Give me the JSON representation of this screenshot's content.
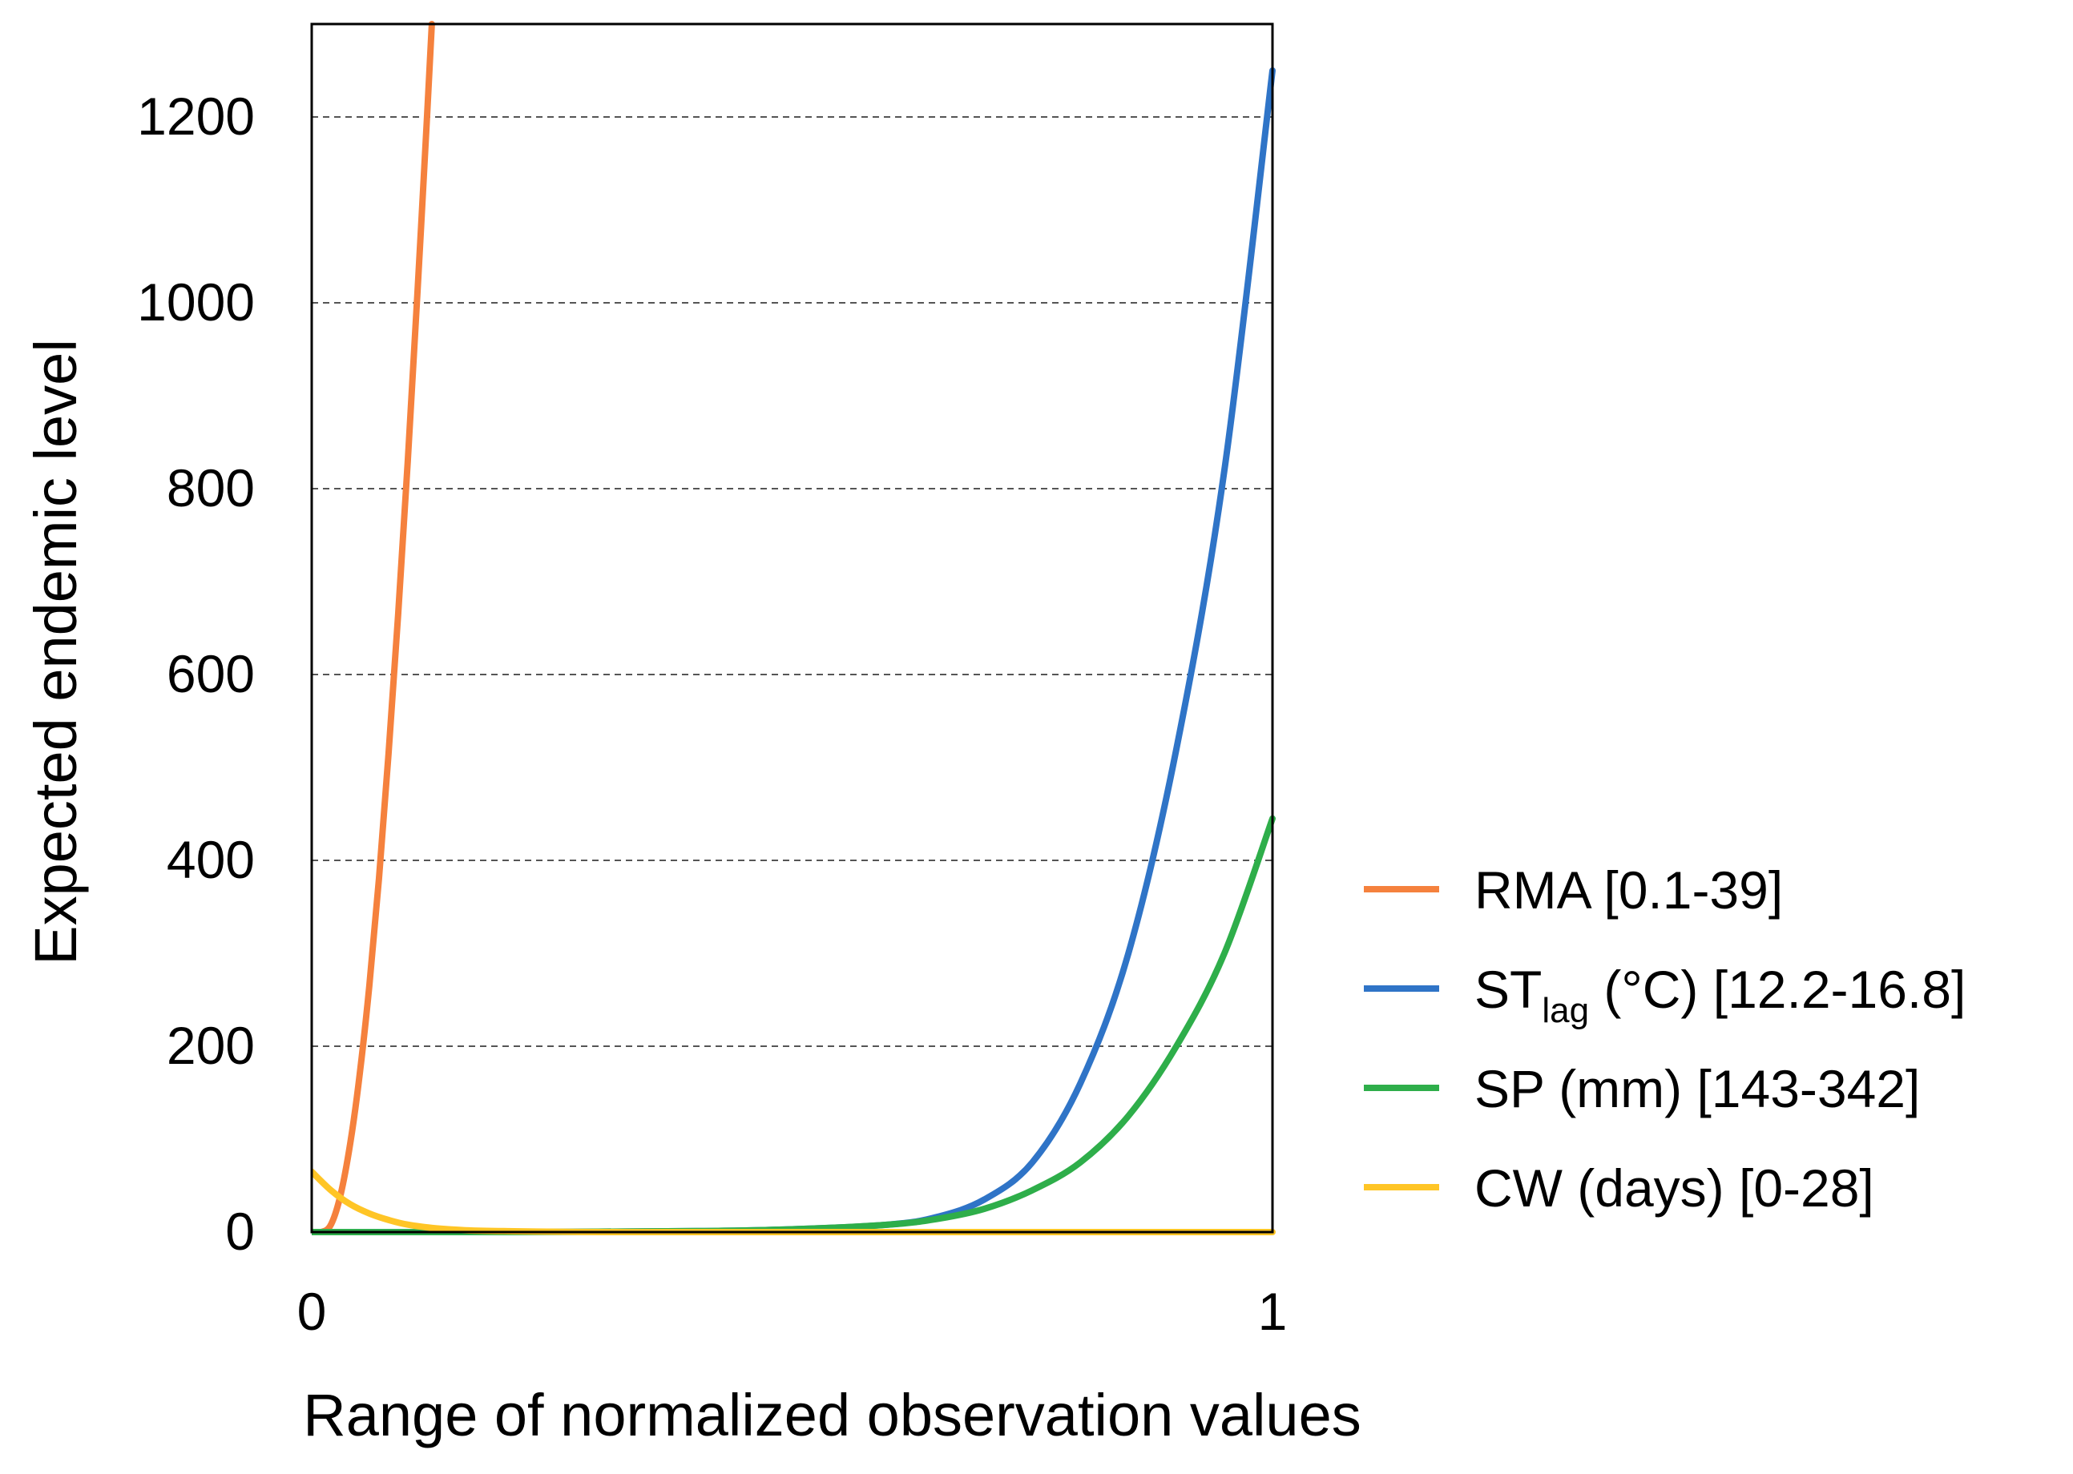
{
  "chart_data": {
    "type": "line",
    "title": "",
    "xlabel": "Range of normalized observation values",
    "ylabel": "Expected endemic level",
    "xlim": [
      0,
      1
    ],
    "ylim": [
      0,
      1300
    ],
    "x_ticks": [
      "0",
      "1"
    ],
    "y_ticks": [
      "0",
      "200",
      "400",
      "600",
      "800",
      "1000",
      "1200"
    ],
    "y_tick_values": [
      0,
      200,
      400,
      600,
      800,
      1000,
      1200
    ],
    "grid": "horizontal dashed",
    "legend_position": "right",
    "series": [
      {
        "name": "RMA [0.1-39]",
        "legend_main": "RMA [0.1-39]",
        "legend_sub": "",
        "legend_rest": "",
        "color": "#F5813D",
        "x": [
          0.0,
          0.01,
          0.02,
          0.03,
          0.04,
          0.05,
          0.06,
          0.07,
          0.08,
          0.09,
          0.1,
          0.11,
          0.12,
          0.125
        ],
        "y": [
          0,
          0,
          8,
          40,
          95,
          170,
          265,
          380,
          515,
          665,
          830,
          1010,
          1200,
          1300
        ]
      },
      {
        "name": "STlag (°C) [12.2-16.8]",
        "legend_main": "ST",
        "legend_sub": "lag",
        "legend_rest": " (°C) [12.2-16.8]",
        "color": "#2F74C7",
        "x": [
          0.0,
          0.2,
          0.4,
          0.5,
          0.6,
          0.65,
          0.7,
          0.75,
          0.8,
          0.85,
          0.9,
          0.95,
          1.0
        ],
        "y": [
          0,
          0,
          1,
          3,
          8,
          16,
          35,
          75,
          160,
          300,
          520,
          820,
          1250
        ]
      },
      {
        "name": "SP (mm) [143-342]",
        "legend_main": "SP (mm) [143-342]",
        "legend_sub": "",
        "legend_rest": "",
        "color": "#2EAE4A",
        "x": [
          0.0,
          0.2,
          0.4,
          0.5,
          0.6,
          0.65,
          0.7,
          0.75,
          0.8,
          0.85,
          0.9,
          0.95,
          1.0
        ],
        "y": [
          0,
          0,
          1,
          3,
          8,
          14,
          25,
          45,
          75,
          125,
          200,
          300,
          445
        ]
      },
      {
        "name": "CW (days) [0-28]",
        "legend_main": "CW (days) [0-28]",
        "legend_sub": "",
        "legend_rest": "",
        "color": "#FFC526",
        "x": [
          0.0,
          0.02,
          0.04,
          0.06,
          0.08,
          0.1,
          0.13,
          0.16,
          0.2,
          0.3,
          0.5,
          1.0
        ],
        "y": [
          65,
          45,
          30,
          20,
          13,
          8,
          4,
          2,
          1,
          0,
          0,
          0
        ]
      }
    ]
  }
}
